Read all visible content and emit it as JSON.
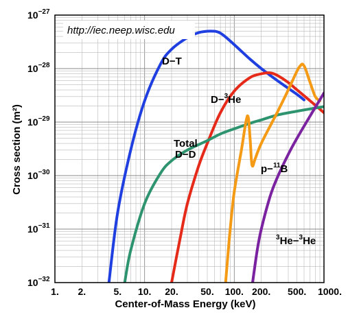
{
  "chart_data": {
    "type": "line",
    "annotation": "http://iec.neep.wisc.edu",
    "xlabel": "Center-of-Mass Energy (keV)",
    "ylabel": "Cross section (m²)",
    "x_scale": "log",
    "y_scale": "log",
    "xlim": [
      1,
      1000
    ],
    "ylim": [
      1e-32,
      1e-27
    ],
    "grid": true,
    "x_ticks": [
      {
        "value": 1,
        "label": "1."
      },
      {
        "value": 2,
        "label": "2."
      },
      {
        "value": 5,
        "label": "5."
      },
      {
        "value": 10,
        "label": "10."
      },
      {
        "value": 20,
        "label": "20."
      },
      {
        "value": 50,
        "label": "50."
      },
      {
        "value": 100,
        "label": "100."
      },
      {
        "value": 200,
        "label": "200."
      },
      {
        "value": 500,
        "label": "500."
      },
      {
        "value": 1000,
        "label": "1000."
      }
    ],
    "y_ticks": [
      {
        "value": 1e-32,
        "base": "10",
        "exp": "−32"
      },
      {
        "value": 1e-31,
        "base": "10",
        "exp": "−31"
      },
      {
        "value": 1e-30,
        "base": "10",
        "exp": "−30"
      },
      {
        "value": 1e-29,
        "base": "10",
        "exp": "−29"
      },
      {
        "value": 1e-28,
        "base": "10",
        "exp": "−28"
      },
      {
        "value": 1e-27,
        "base": "10",
        "exp": "−27"
      }
    ],
    "series": [
      {
        "name": "D−T",
        "color": "#1f3fe0",
        "x": [
          4.0,
          5,
          7,
          10,
          15,
          20,
          30,
          40,
          50,
          60,
          64,
          70,
          80,
          100,
          150,
          200,
          300,
          500,
          600
        ],
        "y": [
          1e-32,
          2e-31,
          3e-30,
          2.5e-29,
          1.2e-28,
          2.3e-28,
          3.8e-28,
          4.7e-28,
          5e-28,
          5e-28,
          4.9e-28,
          4.6e-28,
          3.9e-28,
          2.8e-28,
          1.5e-28,
          1e-28,
          6e-29,
          3.3e-29,
          2.6e-29
        ]
      },
      {
        "name": "D−³He",
        "color": "#e62a1a",
        "x": [
          20,
          25,
          30,
          40,
          50,
          70,
          100,
          150,
          200,
          250,
          300,
          400,
          500,
          700,
          1000
        ],
        "y": [
          1e-32,
          7e-32,
          3e-31,
          1.5e-30,
          4e-30,
          1.5e-29,
          3.8e-29,
          6.8e-29,
          8e-29,
          8.3e-29,
          7.5e-29,
          5.5e-29,
          4e-29,
          2.5e-29,
          1.5e-29
        ]
      },
      {
        "name": "Total D−D",
        "color": "#2e9470",
        "x": [
          6.0,
          7,
          10,
          15,
          20,
          30,
          50,
          70,
          100,
          150,
          200,
          300,
          500,
          1000
        ],
        "y": [
          1e-32,
          4e-32,
          3e-31,
          1.1e-30,
          1.9e-30,
          3e-30,
          4.5e-30,
          6e-30,
          7.5e-30,
          9.5e-30,
          1.1e-29,
          1.35e-29,
          1.6e-29,
          1.95e-29
        ]
      },
      {
        "name": "p−¹¹B",
        "color": "#f59a14",
        "x": [
          80,
          90,
          100,
          120,
          140,
          150,
          155,
          160,
          170,
          200,
          300,
          400,
          500,
          550,
          580,
          620,
          700,
          800,
          900
        ],
        "y": [
          1e-32,
          1e-31,
          5e-31,
          3e-30,
          1.3e-29,
          5e-30,
          2e-30,
          1.5e-30,
          2e-30,
          4e-30,
          1.5e-29,
          4e-29,
          9e-29,
          1.15e-28,
          1.2e-28,
          1e-28,
          5.5e-29,
          3e-29,
          2.5e-29
        ]
      },
      {
        "name": "³He−³He",
        "color": "#7a22a0",
        "x": [
          160,
          180,
          200,
          250,
          300,
          400,
          500,
          700,
          1000
        ],
        "y": [
          1e-32,
          4e-32,
          1e-31,
          4e-31,
          9e-31,
          2.5e-30,
          5e-30,
          1.3e-29,
          3.5e-29
        ]
      }
    ],
    "labels": [
      {
        "text": "D−T",
        "series": 0
      },
      {
        "text": "D−",
        "sup": "3",
        "rest": "He",
        "series": 1
      },
      {
        "text": "Total",
        "series": 2
      },
      {
        "text": "D−D",
        "series": 2
      },
      {
        "text": "p−",
        "sup": "11",
        "rest": "B",
        "series": 3
      },
      {
        "sup": "3",
        "text": "He−",
        "sup2": "3",
        "rest": "He",
        "series": 4
      }
    ]
  }
}
